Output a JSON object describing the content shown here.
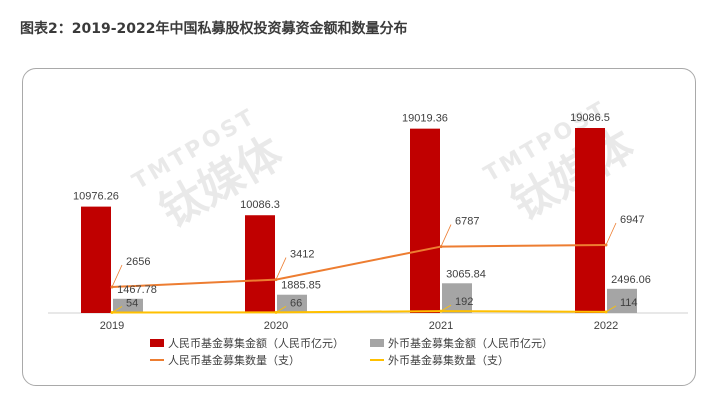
{
  "header": {
    "title": "图表2：2019-2022年中国私募股权投资募资金额和数量分布"
  },
  "watermark": {
    "brand_latin": "TMTPOST",
    "brand_cn": "钛媒体"
  },
  "chart_data": {
    "type": "bar",
    "categories": [
      "2019",
      "2020",
      "2021",
      "2022"
    ],
    "series": [
      {
        "name": "人民币基金募集金额（人民币亿元）",
        "type": "bar",
        "axis": "left",
        "color": "#c00000",
        "values": [
          10976.26,
          10086.3,
          19019.36,
          19086.5
        ],
        "labels": [
          "10976.26",
          "10086.3",
          "19019.36",
          "19086.5"
        ]
      },
      {
        "name": "外币基金募集金额（人民币亿元）",
        "type": "bar",
        "axis": "left",
        "color": "#a5a5a5",
        "values": [
          1467.78,
          1885.85,
          3065.84,
          2496.06
        ],
        "labels": [
          "1467.78",
          "1885.85",
          "3065.84",
          "2496.06"
        ]
      },
      {
        "name": "人民币基金募集数量（支）",
        "type": "line",
        "axis": "right",
        "color": "#ed7d31",
        "values": [
          2656,
          3412,
          6787,
          6947
        ],
        "labels": [
          "2656",
          "3412",
          "6787",
          "6947"
        ]
      },
      {
        "name": "外币基金募集数量（支）",
        "type": "line",
        "axis": "right",
        "color": "#ffc000",
        "values": [
          54,
          66,
          192,
          114
        ],
        "labels": [
          "54",
          "66",
          "192",
          "114"
        ]
      }
    ],
    "legend_position": "bottom",
    "grid": false
  }
}
